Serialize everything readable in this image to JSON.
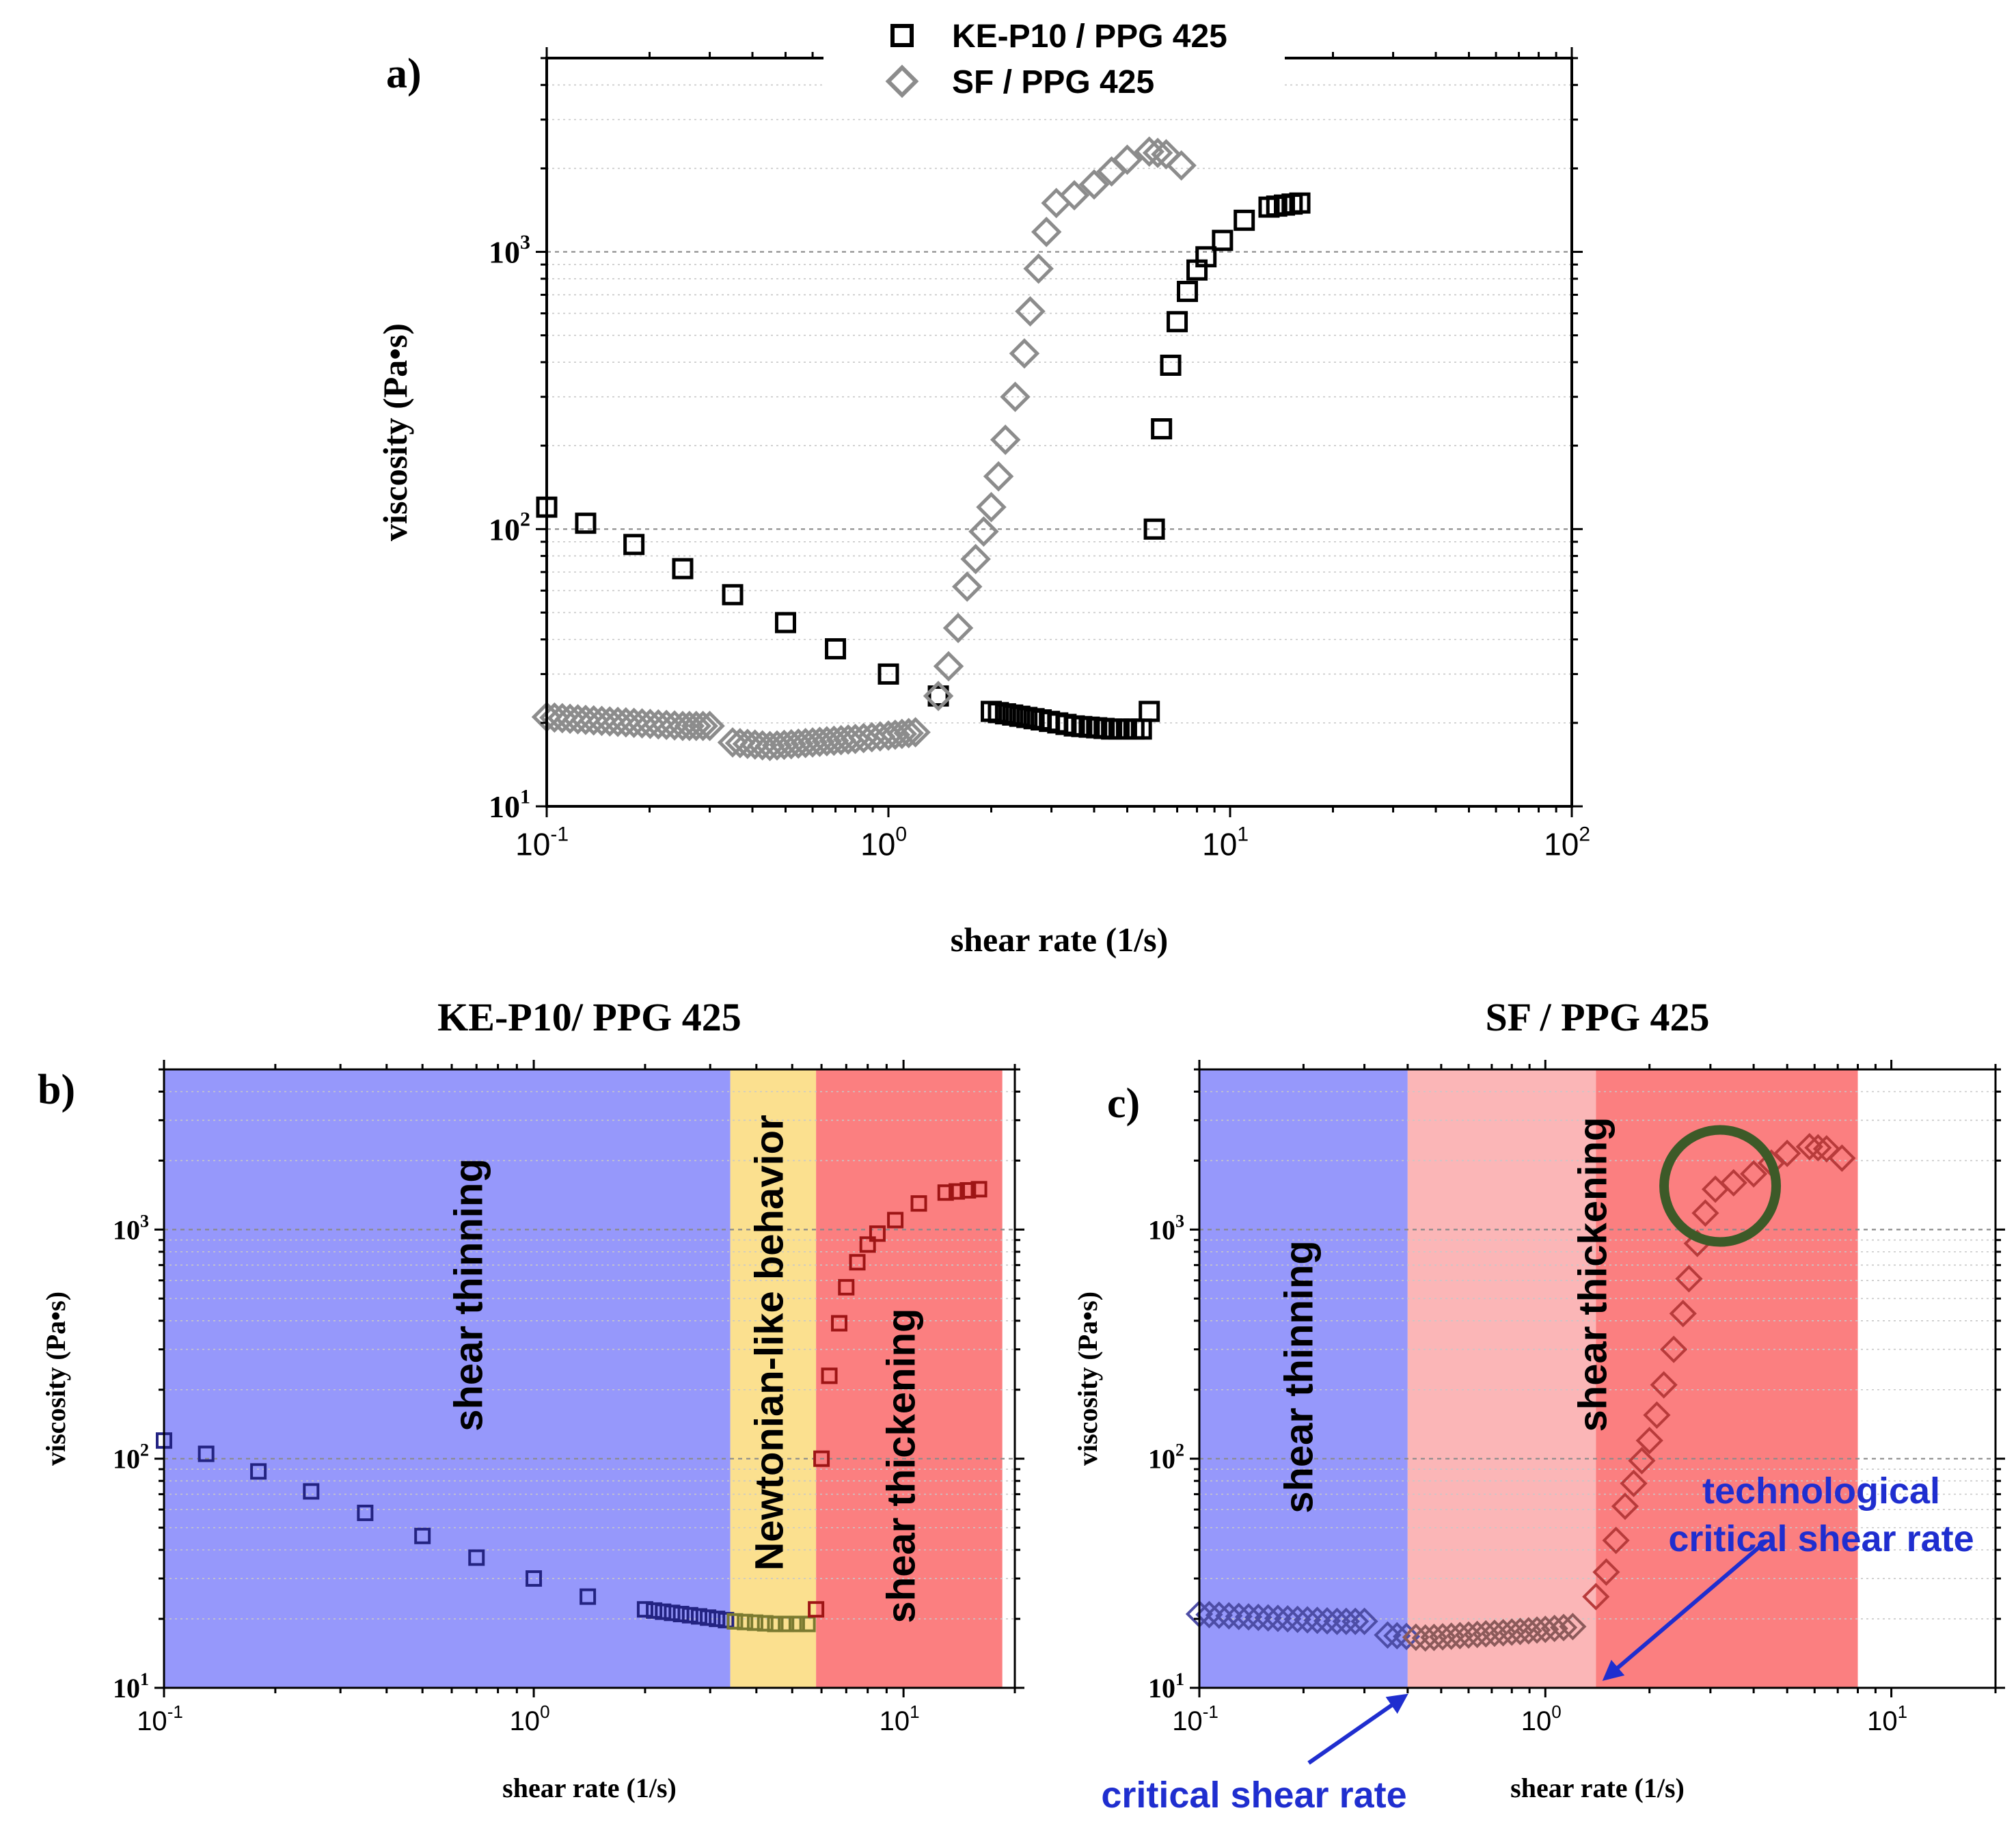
{
  "chart_data": [
    {
      "id": "a",
      "panel_label": "a)",
      "type": "scatter",
      "title": "",
      "xlabel": "shear rate   (1/s)",
      "ylabel": "viscosity   (Pa•s)",
      "xscale": "log",
      "yscale": "log",
      "xlim": [
        0.1,
        100
      ],
      "ylim": [
        10,
        5000
      ],
      "x_ticks": [
        {
          "base": "10",
          "exp": "-1"
        },
        {
          "base": "10",
          "exp": "0"
        },
        {
          "base": "10",
          "exp": "1"
        },
        {
          "base": "10",
          "exp": "2"
        }
      ],
      "y_ticks": [
        {
          "base": "10",
          "exp": "1"
        },
        {
          "base": "10",
          "exp": "2"
        },
        {
          "base": "10",
          "exp": "3"
        }
      ],
      "legend": {
        "position": "top-center",
        "entries": [
          "KE-P10 / PPG 425",
          "SF / PPG 425"
        ]
      },
      "series": [
        {
          "name": "KE-P10 / PPG 425",
          "marker": "square",
          "color": "#000000",
          "points": [
            [
              0.1,
              120
            ],
            [
              0.13,
              105
            ],
            [
              0.18,
              88
            ],
            [
              0.25,
              72
            ],
            [
              0.35,
              58
            ],
            [
              0.5,
              46
            ],
            [
              0.7,
              37
            ],
            [
              1.0,
              30
            ],
            [
              1.4,
              25
            ],
            [
              2.0,
              22
            ],
            [
              2.8,
              20.5
            ],
            [
              3.5,
              19.5
            ],
            [
              4.5,
              19
            ],
            [
              5.5,
              19
            ],
            [
              5.8,
              22
            ],
            [
              6.0,
              100
            ],
            [
              6.3,
              230
            ],
            [
              6.7,
              390
            ],
            [
              7.0,
              560
            ],
            [
              7.5,
              720
            ],
            [
              8.0,
              860
            ],
            [
              8.5,
              960
            ],
            [
              9.5,
              1100
            ],
            [
              11,
              1300
            ],
            [
              13,
              1450
            ],
            [
              16,
              1500
            ]
          ]
        },
        {
          "name": "SF / PPG 425",
          "marker": "diamond",
          "color": "#8c8c8c",
          "points": [
            [
              0.1,
              21
            ],
            [
              0.13,
              20.5
            ],
            [
              0.18,
              20
            ],
            [
              0.25,
              19.5
            ],
            [
              0.3,
              19.5
            ],
            [
              0.35,
              17
            ],
            [
              0.45,
              16.5
            ],
            [
              0.6,
              17
            ],
            [
              0.8,
              17.5
            ],
            [
              1.0,
              18
            ],
            [
              1.2,
              18.5
            ],
            [
              1.4,
              25
            ],
            [
              1.5,
              32
            ],
            [
              1.6,
              44
            ],
            [
              1.7,
              62
            ],
            [
              1.8,
              78
            ],
            [
              1.9,
              98
            ],
            [
              2.0,
              120
            ],
            [
              2.1,
              155
            ],
            [
              2.2,
              210
            ],
            [
              2.35,
              300
            ],
            [
              2.5,
              430
            ],
            [
              2.6,
              610
            ],
            [
              2.75,
              870
            ],
            [
              2.9,
              1180
            ],
            [
              3.1,
              1500
            ],
            [
              3.5,
              1600
            ],
            [
              4.0,
              1750
            ],
            [
              4.5,
              1950
            ],
            [
              5.0,
              2150
            ],
            [
              5.8,
              2300
            ],
            [
              6.5,
              2250
            ],
            [
              7.2,
              2050
            ]
          ]
        }
      ]
    },
    {
      "id": "b",
      "panel_label": "b)",
      "type": "scatter",
      "title": "KE-P10/ PPG 425",
      "xlabel": "shear rate   (1/s)",
      "ylabel": "viscosity   (Pa•s)",
      "xscale": "log",
      "yscale": "log",
      "xlim": [
        0.1,
        20
      ],
      "ylim": [
        10,
        5000
      ],
      "x_ticks": [
        {
          "base": "10",
          "exp": "-1"
        },
        {
          "base": "10",
          "exp": "0"
        },
        {
          "base": "10",
          "exp": "1"
        }
      ],
      "y_ticks": [
        {
          "base": "10",
          "exp": "1"
        },
        {
          "base": "10",
          "exp": "2"
        },
        {
          "base": "10",
          "exp": "3"
        }
      ],
      "regions": [
        {
          "label": "shear thinning",
          "x": [
            0.1,
            3.4
          ],
          "color": "#9698fb"
        },
        {
          "label": "Newtonian-like behavior",
          "x": [
            3.4,
            5.8
          ],
          "color": "#fbe08f"
        },
        {
          "label": "shear thickening",
          "x": [
            5.8,
            18.5
          ],
          "color": "#fb7f80"
        }
      ],
      "series": [
        {
          "name": "KE-P10 / PPG 425",
          "marker": "square",
          "points": [
            [
              0.1,
              120
            ],
            [
              0.13,
              105
            ],
            [
              0.18,
              88
            ],
            [
              0.25,
              72
            ],
            [
              0.35,
              58
            ],
            [
              0.5,
              46
            ],
            [
              0.7,
              37
            ],
            [
              1.0,
              30
            ],
            [
              1.4,
              25
            ],
            [
              2.0,
              22
            ],
            [
              2.8,
              20.5
            ],
            [
              3.5,
              19.5
            ],
            [
              4.5,
              19
            ],
            [
              5.5,
              19
            ],
            [
              5.8,
              22
            ],
            [
              6.0,
              100
            ],
            [
              6.3,
              230
            ],
            [
              6.7,
              390
            ],
            [
              7.0,
              560
            ],
            [
              7.5,
              720
            ],
            [
              8.0,
              860
            ],
            [
              8.5,
              960
            ],
            [
              9.5,
              1100
            ],
            [
              11,
              1300
            ],
            [
              13,
              1450
            ],
            [
              16,
              1500
            ]
          ]
        }
      ]
    },
    {
      "id": "c",
      "panel_label": "c)",
      "type": "scatter",
      "title": "SF / PPG 425",
      "xlabel": "shear rate   (1/s)",
      "ylabel": "viscosity   (Pa•s)",
      "xscale": "log",
      "yscale": "log",
      "xlim": [
        0.1,
        20
      ],
      "ylim": [
        10,
        5000
      ],
      "x_ticks": [
        {
          "base": "10",
          "exp": "-1"
        },
        {
          "base": "10",
          "exp": "0"
        },
        {
          "base": "10",
          "exp": "1"
        }
      ],
      "y_ticks": [
        {
          "base": "10",
          "exp": "1"
        },
        {
          "base": "10",
          "exp": "2"
        },
        {
          "base": "10",
          "exp": "3"
        }
      ],
      "regions": [
        {
          "label": "shear thinning",
          "x": [
            0.1,
            0.4
          ],
          "color": "#9698fb"
        },
        {
          "label": "",
          "x": [
            0.4,
            1.4
          ],
          "color": "#fbb6b7"
        },
        {
          "label": "shear thickening",
          "x": [
            1.4,
            8.0
          ],
          "color": "#fb7f80"
        }
      ],
      "annotations": [
        {
          "text": "critical shear rate",
          "points_to_x": 0.4
        },
        {
          "lines": [
            "technological",
            "critical shear rate"
          ],
          "points_to_x": 1.4
        }
      ],
      "highlight": {
        "shape": "circle",
        "center": [
          3.2,
          1550
        ],
        "color": "#3d5a28"
      },
      "series": [
        {
          "name": "SF / PPG 425",
          "marker": "diamond",
          "points": [
            [
              0.1,
              21
            ],
            [
              0.13,
              20.5
            ],
            [
              0.18,
              20
            ],
            [
              0.25,
              19.5
            ],
            [
              0.3,
              19.5
            ],
            [
              0.35,
              17
            ],
            [
              0.45,
              16.5
            ],
            [
              0.6,
              17
            ],
            [
              0.8,
              17.5
            ],
            [
              1.0,
              18
            ],
            [
              1.2,
              18.5
            ],
            [
              1.4,
              25
            ],
            [
              1.5,
              32
            ],
            [
              1.6,
              44
            ],
            [
              1.7,
              62
            ],
            [
              1.8,
              78
            ],
            [
              1.9,
              98
            ],
            [
              2.0,
              120
            ],
            [
              2.1,
              155
            ],
            [
              2.2,
              210
            ],
            [
              2.35,
              300
            ],
            [
              2.5,
              430
            ],
            [
              2.6,
              610
            ],
            [
              2.75,
              870
            ],
            [
              2.9,
              1180
            ],
            [
              3.1,
              1500
            ],
            [
              3.5,
              1600
            ],
            [
              4.0,
              1750
            ],
            [
              4.5,
              1950
            ],
            [
              5.0,
              2150
            ],
            [
              5.8,
              2300
            ],
            [
              6.5,
              2250
            ],
            [
              7.2,
              2050
            ]
          ]
        }
      ]
    }
  ]
}
